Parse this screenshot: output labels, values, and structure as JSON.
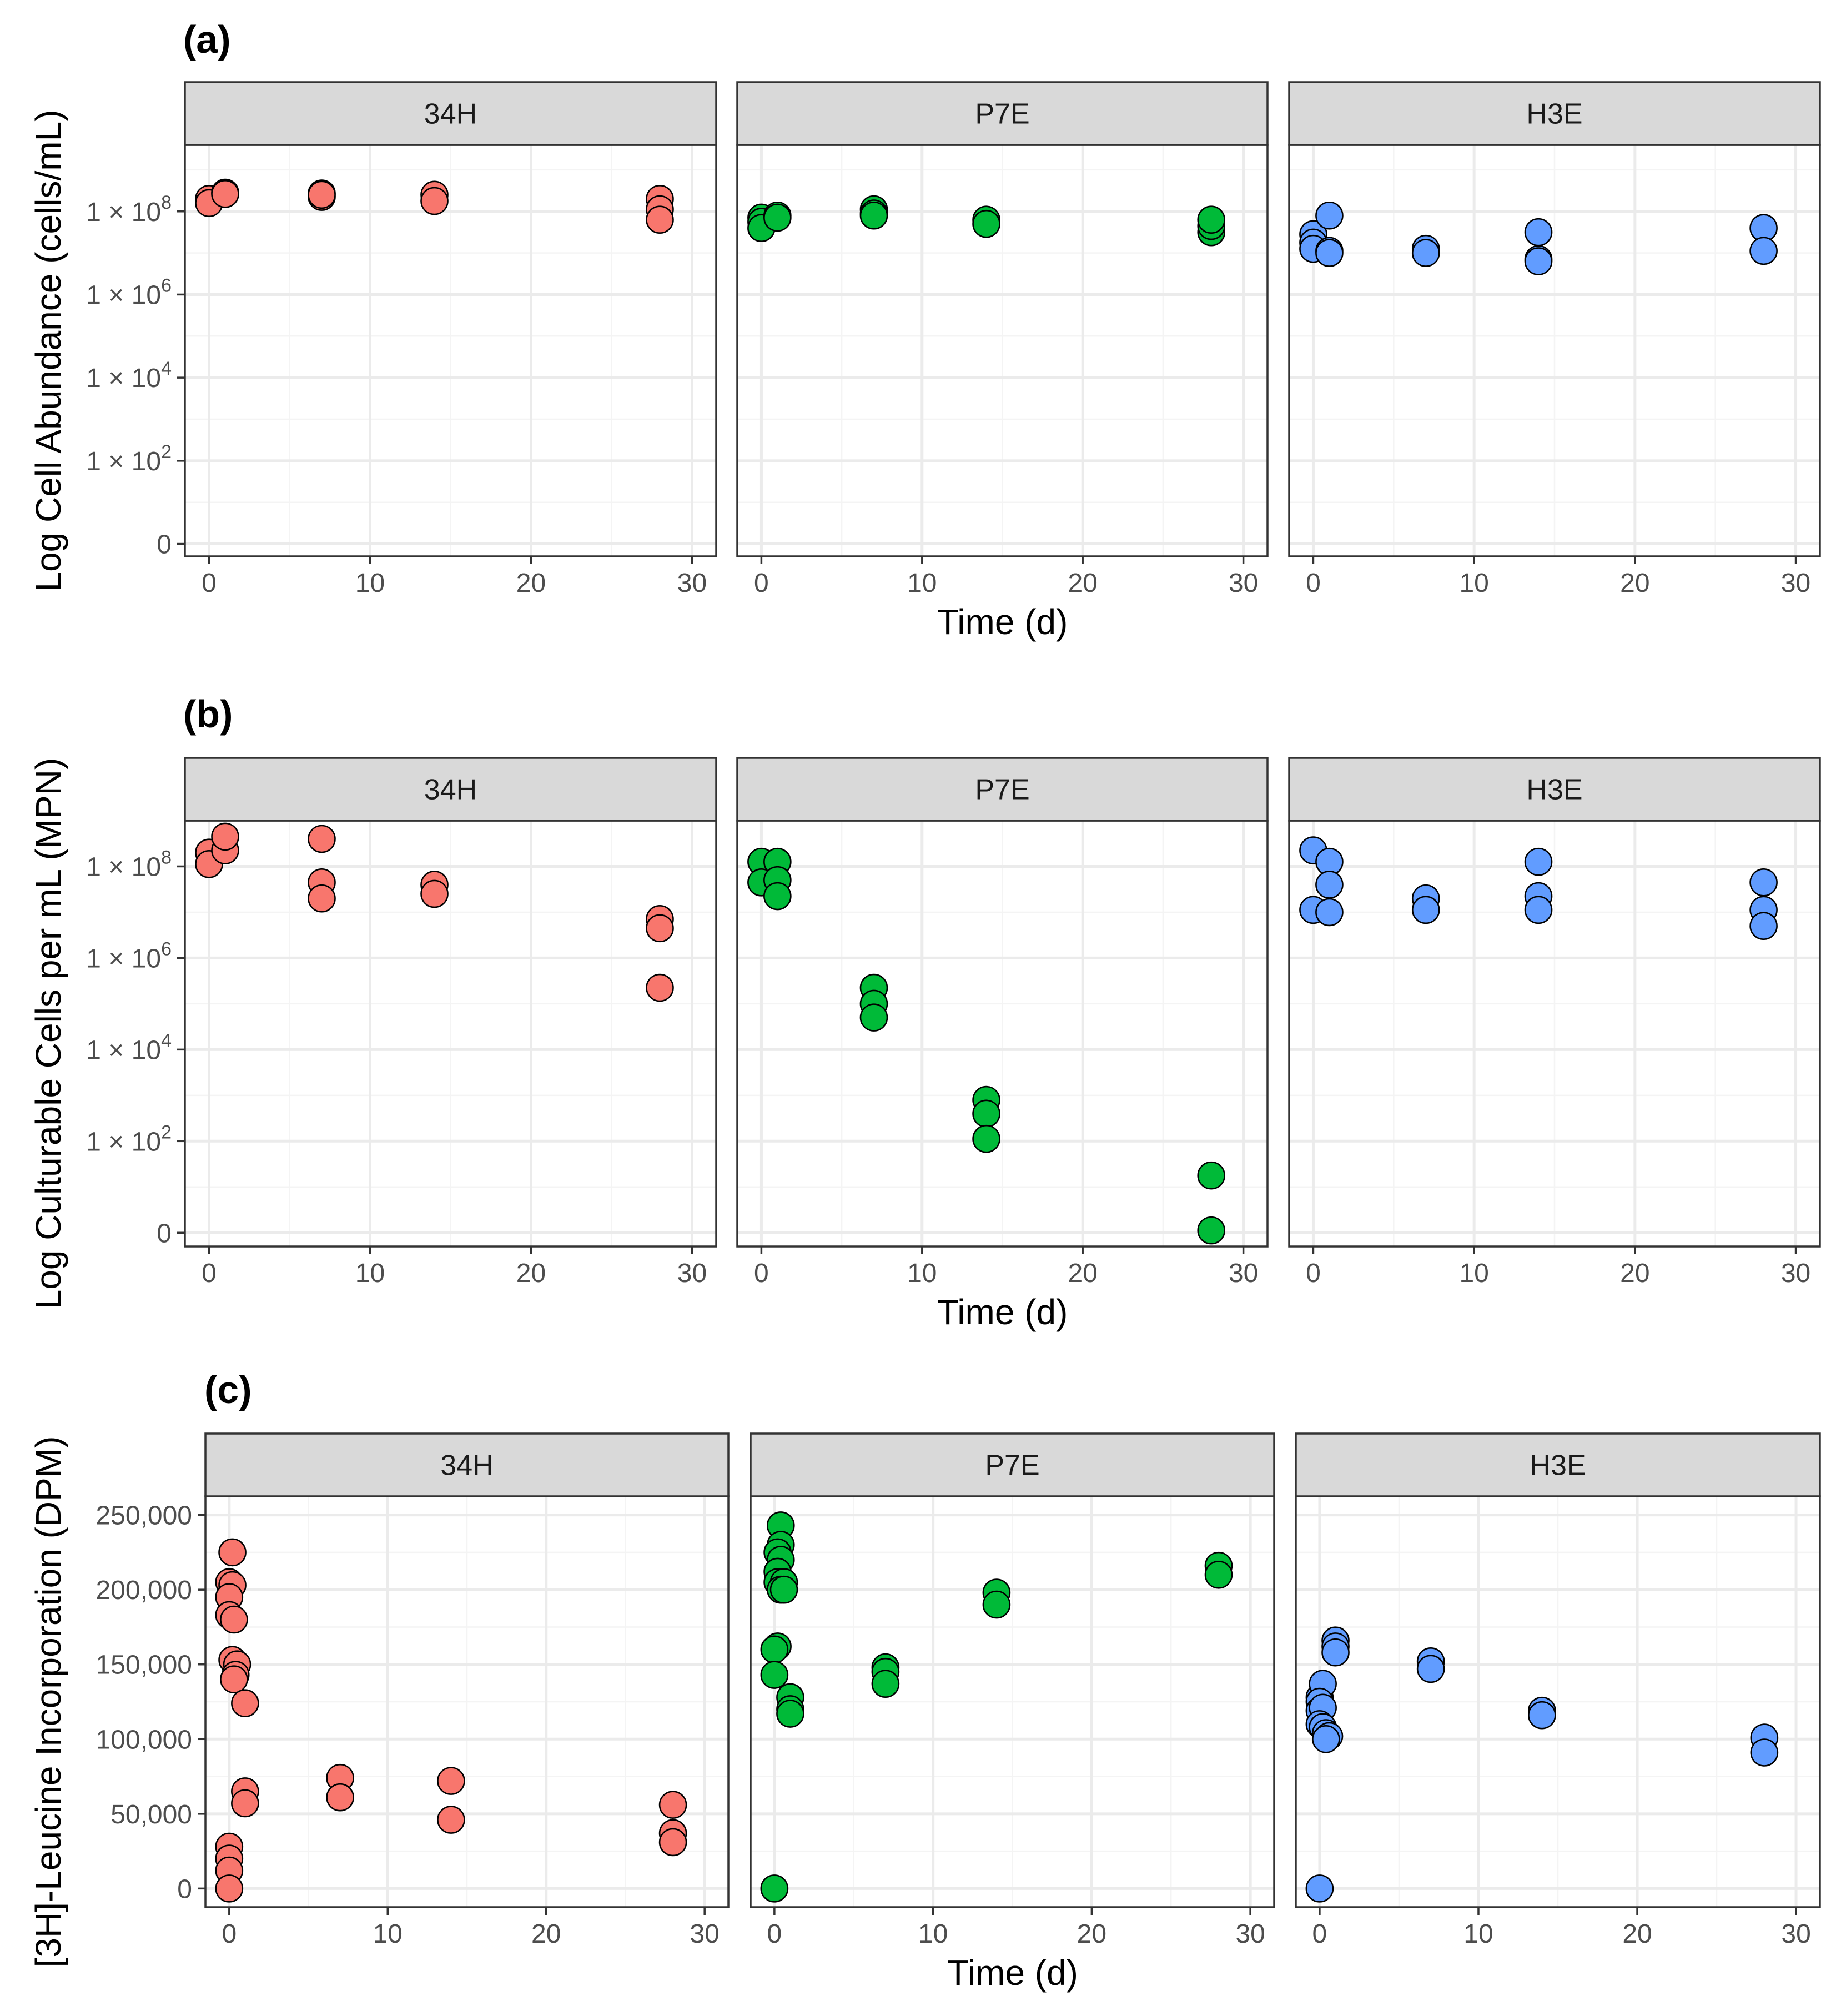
{
  "colors": {
    "34H": "#f8766d",
    "P7E": "#00ba38",
    "H3E": "#619cff"
  },
  "chart_data": [
    {
      "type": "scatter",
      "tag": "(a)",
      "ylabel": "Log Cell Abundance (cells/mL)",
      "xlabel": "Time (d)",
      "xlim": [
        -1.5,
        31.5
      ],
      "xticks": [
        0,
        10,
        20,
        30
      ],
      "yscale": "log10_plus1",
      "ylim": [
        -0.3,
        9.6
      ],
      "yticks": [
        {
          "v": 0,
          "label": "0"
        },
        {
          "v": 2,
          "label": "1 × 10",
          "exp": "2"
        },
        {
          "v": 4,
          "label": "1 × 10",
          "exp": "4"
        },
        {
          "v": 6,
          "label": "1 × 10",
          "exp": "6"
        },
        {
          "v": 8,
          "label": "1 × 10",
          "exp": "8"
        }
      ],
      "facets": [
        {
          "name": "34H",
          "points": [
            [
              0,
              8.3
            ],
            [
              0,
              8.2
            ],
            [
              1,
              8.45
            ],
            [
              1,
              8.42
            ],
            [
              7,
              8.43
            ],
            [
              7,
              8.35
            ],
            [
              7,
              8.4
            ],
            [
              14,
              8.4
            ],
            [
              14,
              8.25
            ],
            [
              28,
              8.3
            ],
            [
              28,
              8.05
            ],
            [
              28,
              7.8
            ]
          ]
        },
        {
          "name": "P7E",
          "points": [
            [
              0,
              7.85
            ],
            [
              0,
              7.75
            ],
            [
              0,
              7.6
            ],
            [
              1,
              7.9
            ],
            [
              1,
              7.85
            ],
            [
              7,
              8.05
            ],
            [
              7,
              7.95
            ],
            [
              7,
              7.9
            ],
            [
              14,
              7.8
            ],
            [
              14,
              7.7
            ],
            [
              28,
              7.5
            ],
            [
              28,
              7.65
            ],
            [
              28,
              7.8
            ]
          ]
        },
        {
          "name": "H3E",
          "points": [
            [
              0,
              7.45
            ],
            [
              0,
              7.25
            ],
            [
              0,
              7.1
            ],
            [
              1,
              7.9
            ],
            [
              1,
              7.05
            ],
            [
              1,
              7.0
            ],
            [
              7,
              7.1
            ],
            [
              7,
              7.0
            ],
            [
              14,
              7.5
            ],
            [
              14,
              6.85
            ],
            [
              14,
              6.8
            ],
            [
              28,
              7.6
            ],
            [
              28,
              7.05
            ]
          ]
        }
      ]
    },
    {
      "type": "scatter",
      "tag": "(b)",
      "ylabel": "Log Culturable Cells per mL (MPN)",
      "xlabel": "Time (d)",
      "xlim": [
        -1.5,
        31.5
      ],
      "xticks": [
        0,
        10,
        20,
        30
      ],
      "yscale": "log10_plus1",
      "ylim": [
        -0.3,
        9.0
      ],
      "yticks": [
        {
          "v": 0,
          "label": "0"
        },
        {
          "v": 2,
          "label": "1 × 10",
          "exp": "2"
        },
        {
          "v": 4,
          "label": "1 × 10",
          "exp": "4"
        },
        {
          "v": 6,
          "label": "1 × 10",
          "exp": "6"
        },
        {
          "v": 8,
          "label": "1 × 10",
          "exp": "8"
        }
      ],
      "facets": [
        {
          "name": "34H",
          "points": [
            [
              0,
              8.3
            ],
            [
              0,
              8.05
            ],
            [
              1,
              8.35
            ],
            [
              1,
              8.65
            ],
            [
              7,
              8.6
            ],
            [
              7,
              7.65
            ],
            [
              7,
              7.3
            ],
            [
              14,
              7.6
            ],
            [
              14,
              7.4
            ],
            [
              28,
              6.85
            ],
            [
              28,
              6.65
            ],
            [
              28,
              5.35
            ]
          ]
        },
        {
          "name": "P7E",
          "points": [
            [
              0,
              8.1
            ],
            [
              0,
              7.65
            ],
            [
              1,
              8.1
            ],
            [
              1,
              7.7
            ],
            [
              1,
              7.35
            ],
            [
              7,
              5.35
            ],
            [
              7,
              5.0
            ],
            [
              7,
              4.7
            ],
            [
              14,
              2.9
            ],
            [
              14,
              2.6
            ],
            [
              14,
              2.05
            ],
            [
              28,
              1.25
            ],
            [
              28,
              0.05
            ]
          ]
        },
        {
          "name": "H3E",
          "points": [
            [
              0,
              8.35
            ],
            [
              0,
              7.05
            ],
            [
              1,
              8.1
            ],
            [
              1,
              7.6
            ],
            [
              1,
              7.0
            ],
            [
              7,
              7.3
            ],
            [
              7,
              7.05
            ],
            [
              14,
              8.1
            ],
            [
              14,
              7.35
            ],
            [
              14,
              7.05
            ],
            [
              28,
              7.65
            ],
            [
              28,
              7.05
            ],
            [
              28,
              6.7
            ]
          ]
        }
      ]
    },
    {
      "type": "scatter",
      "tag": "(c)",
      "ylabel": "[3H]-Leucine Incorporation (DPM)",
      "xlabel": "Time (d)",
      "xlim": [
        -1.5,
        31.5
      ],
      "xticks": [
        0,
        10,
        20,
        30
      ],
      "yscale": "linear",
      "ylim": [
        -12500,
        262500
      ],
      "yticks": [
        {
          "v": 0,
          "label": "0"
        },
        {
          "v": 50000,
          "label": "50,000"
        },
        {
          "v": 100000,
          "label": "100,000"
        },
        {
          "v": 150000,
          "label": "150,000"
        },
        {
          "v": 200000,
          "label": "200,000"
        },
        {
          "v": 250000,
          "label": "250,000"
        }
      ],
      "facets": [
        {
          "name": "34H",
          "points": [
            [
              0.2,
              225000
            ],
            [
              0,
              205000
            ],
            [
              0.2,
              203000
            ],
            [
              0,
              195000
            ],
            [
              0,
              183000
            ],
            [
              0.3,
              180000
            ],
            [
              0.2,
              153000
            ],
            [
              0.5,
              150000
            ],
            [
              0.4,
              143000
            ],
            [
              0.3,
              140000
            ],
            [
              1,
              124000
            ],
            [
              1,
              65000
            ],
            [
              1,
              57000
            ],
            [
              0,
              28000
            ],
            [
              0,
              20000
            ],
            [
              0,
              12000
            ],
            [
              0,
              0
            ],
            [
              7,
              74000
            ],
            [
              7,
              61000
            ],
            [
              14,
              72000
            ],
            [
              14,
              46000
            ],
            [
              28,
              56000
            ],
            [
              28,
              37000
            ],
            [
              28,
              31000
            ]
          ]
        },
        {
          "name": "P7E",
          "points": [
            [
              0.4,
              243000
            ],
            [
              0.4,
              230000
            ],
            [
              0.2,
              225000
            ],
            [
              0.4,
              220000
            ],
            [
              0.2,
              212000
            ],
            [
              0.2,
              205000
            ],
            [
              0.6,
              205000
            ],
            [
              0.4,
              200000
            ],
            [
              0.6,
              200000
            ],
            [
              0.2,
              162000
            ],
            [
              0,
              160000
            ],
            [
              0,
              143000
            ],
            [
              1,
              128000
            ],
            [
              1,
              120000
            ],
            [
              1,
              117000
            ],
            [
              7,
              148000
            ],
            [
              7,
              145000
            ],
            [
              7,
              137000
            ],
            [
              14,
              198000
            ],
            [
              14,
              190000
            ],
            [
              28,
              216000
            ],
            [
              28,
              210000
            ],
            [
              0,
              0
            ]
          ]
        },
        {
          "name": "H3E",
          "points": [
            [
              0,
              128000
            ],
            [
              0.2,
              137000
            ],
            [
              0,
              125000
            ],
            [
              0,
              119000
            ],
            [
              0.2,
              121000
            ],
            [
              0,
              110000
            ],
            [
              0.2,
              108000
            ],
            [
              0.4,
              104000
            ],
            [
              0.6,
              102000
            ],
            [
              0.4,
              100000
            ],
            [
              1,
              166000
            ],
            [
              1,
              162000
            ],
            [
              1,
              158000
            ],
            [
              7,
              152000
            ],
            [
              7,
              147000
            ],
            [
              14,
              119000
            ],
            [
              14,
              116000
            ],
            [
              28,
              101000
            ],
            [
              28,
              91000
            ],
            [
              0,
              0
            ]
          ]
        }
      ]
    }
  ]
}
